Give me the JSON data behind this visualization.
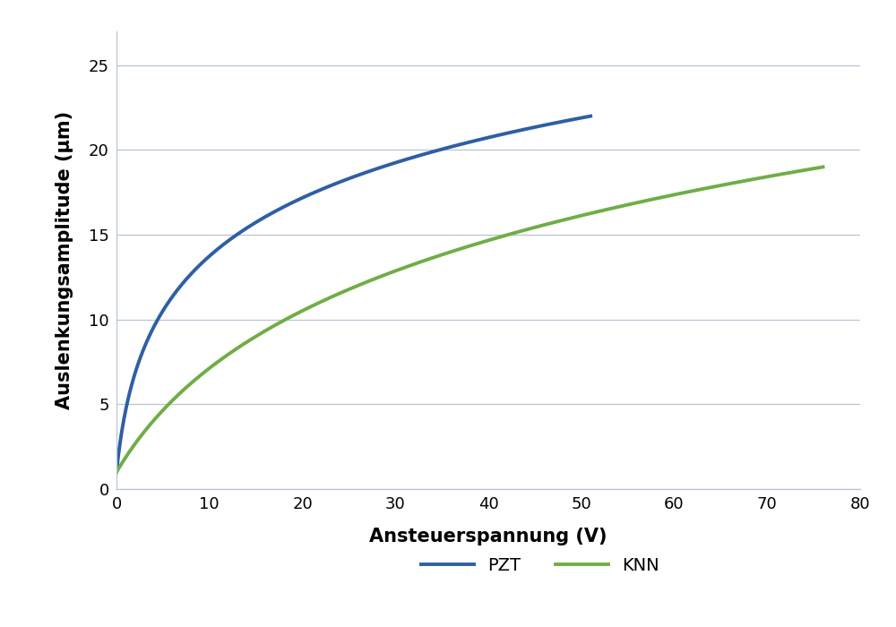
{
  "title": "",
  "xlabel": "Ansteuerspannung (V)",
  "ylabel": "Auslenkungsamplitude (μm)",
  "xlim": [
    0,
    80
  ],
  "ylim": [
    0,
    27
  ],
  "xticks": [
    0,
    10,
    20,
    30,
    40,
    50,
    60,
    70,
    80
  ],
  "yticks": [
    0,
    5,
    10,
    15,
    20,
    25
  ],
  "pzt_color": "#2E5FA3",
  "knn_color": "#70AD47",
  "legend_labels": [
    "PZT",
    "KNN"
  ],
  "grid_color": "#B8C4D8",
  "bg_color": "#FFFFFF",
  "xlabel_fontsize": 15,
  "ylabel_fontsize": 15,
  "tick_fontsize": 13,
  "legend_fontsize": 14,
  "line_width": 2.8,
  "pzt_x_end": 51.0,
  "pzt_y_end": 22.0,
  "knn_x_end": 76.0,
  "knn_y_end": 19.0,
  "y_start": 1.0,
  "pzt_log_scale": 1.5,
  "knn_log_scale": 3.0
}
